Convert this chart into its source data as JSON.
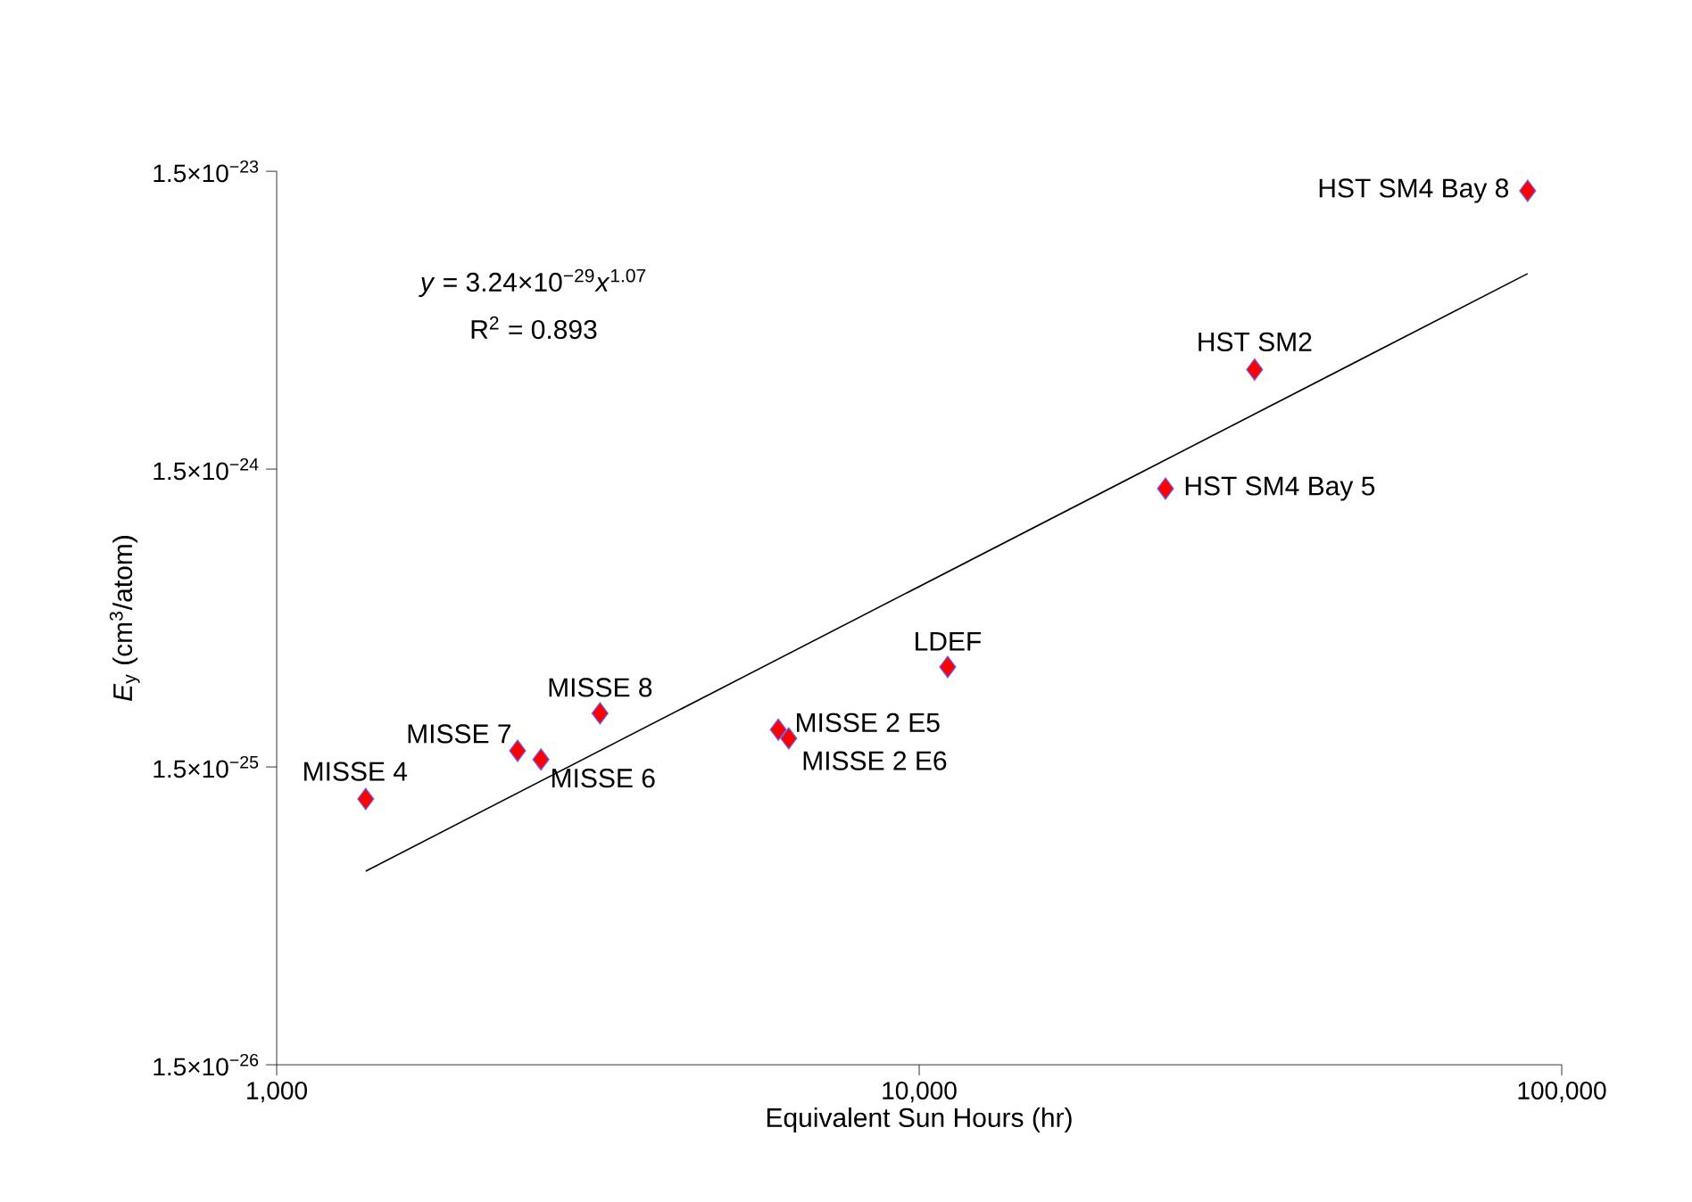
{
  "chart_data": {
    "type": "scatter",
    "xlabel": "Equivalent Sun Hours (hr)",
    "ylabel": "*E*$_{y}$ (cm$^{3}$/atom)",
    "log": "xy",
    "grid": false,
    "marker": "diamond",
    "xlim": [
      1000,
      100000
    ],
    "ylim": [
      1.5e-26,
      1.5e-23
    ],
    "xticks": [
      {
        "value": 1000,
        "label": "1,000"
      },
      {
        "value": 10000,
        "label": "10,000"
      },
      {
        "value": 100000,
        "label": "100,000"
      }
    ],
    "yticks": [
      {
        "value": 1.5e-26,
        "label": "1.5×10$^{−26}$"
      },
      {
        "value": 1.5e-25,
        "label": "1.5×10$^{−25}$"
      },
      {
        "value": 1.5e-24,
        "label": "1.5×10$^{−24}$"
      },
      {
        "value": 1.5e-23,
        "label": "1.5×10$^{−23}$"
      }
    ],
    "series": [
      {
        "color": "#ff0000",
        "x": [
          1376,
          2371,
          2578,
          3186,
          6036,
          6266,
          11075,
          24170,
          33270,
          88500
        ],
        "values": [
          1.17e-25,
          1.7e-25,
          1.59e-25,
          2.27e-25,
          2e-25,
          1.87e-25,
          3.25e-25,
          1.29e-24,
          3.24e-24,
          1.29e-23
        ]
      },
      {
        "type": "line",
        "color": "#000000",
        "marker": "none",
        "x": [
          1376,
          88500
        ],
        "values": [
          6.7e-26,
          6.8e-24
        ]
      }
    ],
    "annotations": [
      {
        "text": "MISSE 4",
        "x": 1376,
        "y": 1.17e-25
      },
      {
        "text": "MISSE 7",
        "x": 2371,
        "y": 1.7e-25
      },
      {
        "text": "MISSE 6",
        "x": 2578,
        "y": 1.59e-25
      },
      {
        "text": "MISSE 8",
        "x": 3186,
        "y": 2.27e-25
      },
      {
        "text": "MISSE 2 E5",
        "x": 6036,
        "y": 2e-25
      },
      {
        "text": "MISSE 2 E6",
        "x": 6266,
        "y": 1.87e-25
      },
      {
        "text": "LDEF",
        "x": 11075,
        "y": 3.25e-25
      },
      {
        "text": "HST SM4 Bay 5",
        "x": 24170,
        "y": 1.29e-24
      },
      {
        "text": "HST SM2",
        "x": 33270,
        "y": 3.24e-24
      },
      {
        "text": "HST SM4 Bay 8",
        "x": 88500,
        "y": 1.29e-23
      },
      "*y* = 3.24×10$^{−29}$*x*$^{1.07}$",
      "R$^{2}$ = 0.893"
    ]
  }
}
